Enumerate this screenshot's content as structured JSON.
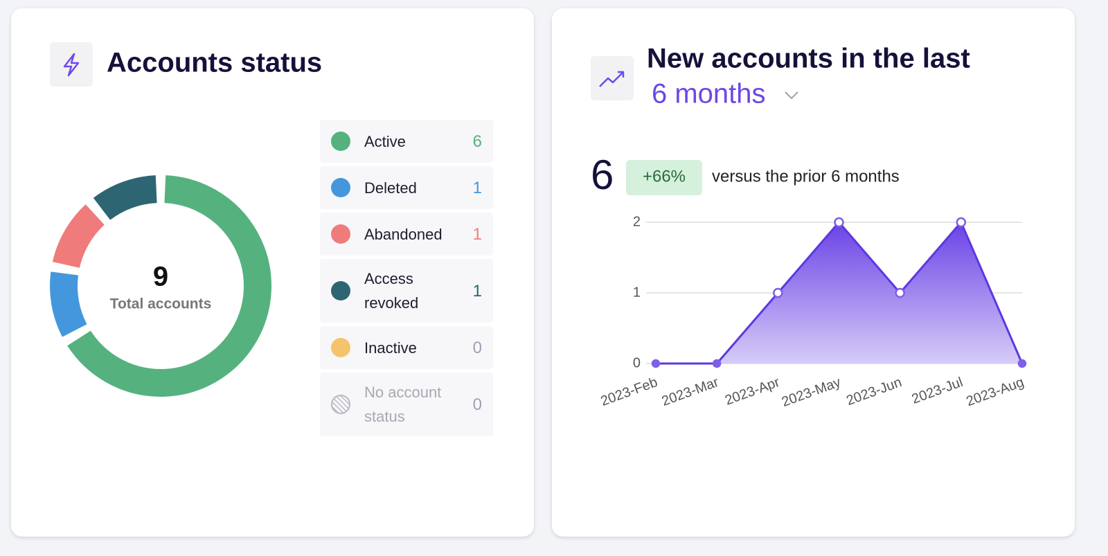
{
  "chart_data": [
    {
      "type": "donut",
      "title": "Accounts status",
      "total": 9,
      "total_label": "Total accounts",
      "categories": [
        "Active",
        "Deleted",
        "Abandoned",
        "Access revoked",
        "Inactive",
        "No account status"
      ],
      "values": [
        6,
        1,
        1,
        1,
        0,
        0
      ],
      "colors": [
        "#55b27f",
        "#4597dd",
        "#f07b7b",
        "#2e6573",
        "#f5c36b",
        "#b8b8c4"
      ]
    },
    {
      "type": "area",
      "title": "New accounts in the last",
      "period": "6 months",
      "total": 6,
      "change": "+66%",
      "comparison": "versus the prior 6 months",
      "categories": [
        "2023-Feb",
        "2023-Mar",
        "2023-Apr",
        "2023-May",
        "2023-Jun",
        "2023-Jul",
        "2023-Aug"
      ],
      "values": [
        0,
        0,
        1,
        2,
        1,
        2,
        0
      ],
      "color": "#5b38e0",
      "ylim": [
        0,
        2
      ],
      "yticks": [
        0,
        1,
        2
      ],
      "grid": true
    }
  ]
}
